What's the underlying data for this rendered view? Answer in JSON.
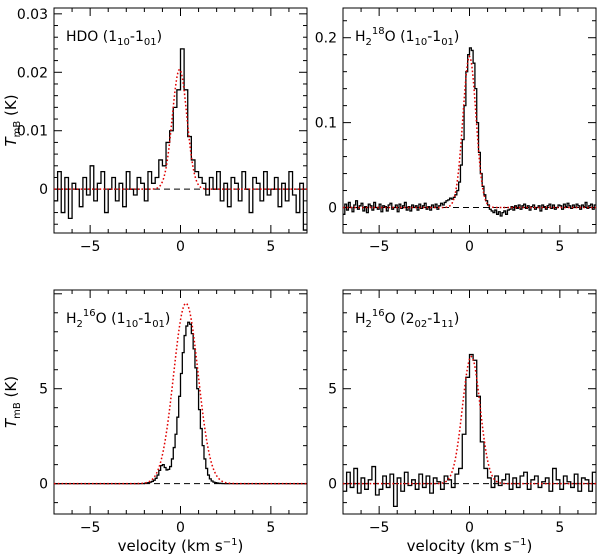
{
  "chart_data": [
    {
      "type": "line",
      "title": "HDO (1_10-1_01)",
      "title_parts": {
        "main": "HDO (1",
        "sub1": "10",
        "mid": "-1",
        "sub2": "01",
        "end": ")"
      },
      "xlabel": "",
      "ylabel": "T_mB (K)",
      "xlim": [
        -7,
        7
      ],
      "ylim": [
        -0.0075,
        0.031
      ],
      "xticks": [
        -5,
        0,
        5
      ],
      "yticks": [
        0,
        0.01,
        0.02,
        0.03
      ],
      "ytick_labels": [
        "0",
        "0.01",
        "0.02",
        "0.03"
      ],
      "legend": "none",
      "series": [
        {
          "name": "observed spectrum",
          "style": "histogram",
          "x": [
            -7.0,
            -6.8,
            -6.6,
            -6.4,
            -6.2,
            -6.0,
            -5.8,
            -5.6,
            -5.4,
            -5.2,
            -5.0,
            -4.8,
            -4.6,
            -4.4,
            -4.2,
            -4.0,
            -3.8,
            -3.6,
            -3.4,
            -3.2,
            -3.0,
            -2.8,
            -2.6,
            -2.4,
            -2.2,
            -2.0,
            -1.8,
            -1.6,
            -1.4,
            -1.2,
            -1.0,
            -0.8,
            -0.6,
            -0.4,
            -0.2,
            0.0,
            0.2,
            0.4,
            0.6,
            0.8,
            1.0,
            1.2,
            1.4,
            1.6,
            1.8,
            2.0,
            2.2,
            2.4,
            2.6,
            2.8,
            3.0,
            3.2,
            3.4,
            3.6,
            3.8,
            4.0,
            4.2,
            4.4,
            4.6,
            4.8,
            5.0,
            5.2,
            5.4,
            5.6,
            5.8,
            6.0,
            6.2,
            6.4,
            6.6,
            6.8
          ],
          "y": [
            -0.002,
            0.003,
            -0.004,
            0.002,
            -0.005,
            0.001,
            0.0,
            -0.003,
            0.002,
            -0.001,
            0.004,
            -0.002,
            0.001,
            0.003,
            -0.004,
            0.0,
            0.002,
            -0.002,
            0.001,
            -0.003,
            0.003,
            0.0,
            -0.001,
            0.002,
            0.001,
            -0.002,
            0.003,
            0.001,
            0.002,
            0.005,
            0.004,
            0.008,
            0.01,
            0.014,
            0.017,
            0.024,
            0.017,
            0.009,
            0.005,
            0.003,
            0.002,
            0.001,
            -0.001,
            0.002,
            0.0,
            0.003,
            -0.002,
            0.001,
            -0.003,
            0.002,
            0.001,
            -0.002,
            0.003,
            0.0,
            -0.004,
            0.002,
            0.001,
            -0.002,
            0.003,
            -0.001,
            0.0,
            0.002,
            -0.003,
            0.001,
            -0.002,
            0.003,
            -0.001,
            -0.004,
            0.001,
            -0.007
          ]
        },
        {
          "name": "model fit",
          "style": "dotted",
          "amp": 0.0205,
          "center": -0.05,
          "fwhm": 0.95
        }
      ]
    },
    {
      "type": "line",
      "title": "H2 18O (1_10-1_01)",
      "title_parts": {
        "main": "H",
        "sub1": "2",
        "sup": "18",
        "mid": "O (1",
        "sub2": "10",
        "mid2": "-1",
        "sub3": "01",
        "end": ")"
      },
      "xlabel": "",
      "ylabel": "",
      "xlim": [
        -7,
        7
      ],
      "ylim": [
        -0.03,
        0.235
      ],
      "xticks": [
        -5,
        0,
        5
      ],
      "yticks": [
        0,
        0.1,
        0.2
      ],
      "ytick_labels": [
        "0",
        "0.1",
        "0.2"
      ],
      "legend": "none",
      "series": [
        {
          "name": "observed spectrum",
          "style": "histogram",
          "x": [
            -7.0,
            -6.9,
            -6.8,
            -6.7,
            -6.6,
            -6.5,
            -6.4,
            -6.3,
            -6.2,
            -6.1,
            -6.0,
            -5.9,
            -5.8,
            -5.7,
            -5.6,
            -5.5,
            -5.4,
            -5.3,
            -5.2,
            -5.1,
            -5.0,
            -4.9,
            -4.8,
            -4.7,
            -4.6,
            -4.5,
            -4.4,
            -4.3,
            -4.2,
            -4.1,
            -4.0,
            -3.9,
            -3.8,
            -3.7,
            -3.6,
            -3.5,
            -3.4,
            -3.3,
            -3.2,
            -3.1,
            -3.0,
            -2.9,
            -2.8,
            -2.7,
            -2.6,
            -2.5,
            -2.4,
            -2.3,
            -2.2,
            -2.1,
            -2.0,
            -1.9,
            -1.8,
            -1.7,
            -1.6,
            -1.5,
            -1.4,
            -1.3,
            -1.2,
            -1.1,
            -1.0,
            -0.9,
            -0.8,
            -0.7,
            -0.6,
            -0.5,
            -0.4,
            -0.3,
            -0.2,
            -0.1,
            0.0,
            0.1,
            0.2,
            0.3,
            0.4,
            0.5,
            0.6,
            0.7,
            0.8,
            0.9,
            1.0,
            1.1,
            1.2,
            1.3,
            1.4,
            1.5,
            1.6,
            1.7,
            1.8,
            1.9,
            2.0,
            2.1,
            2.2,
            2.3,
            2.4,
            2.5,
            2.6,
            2.7,
            2.8,
            2.9,
            3.0,
            3.1,
            3.2,
            3.3,
            3.4,
            3.5,
            3.6,
            3.7,
            3.8,
            3.9,
            4.0,
            4.1,
            4.2,
            4.3,
            4.4,
            4.5,
            4.6,
            4.7,
            4.8,
            4.9,
            5.0,
            5.1,
            5.2,
            5.3,
            5.4,
            5.5,
            5.6,
            5.7,
            5.8,
            5.9,
            6.0,
            6.1,
            6.2,
            6.3,
            6.4,
            6.5,
            6.6,
            6.7,
            6.8,
            6.9
          ],
          "y": [
            -0.008,
            0.004,
            -0.003,
            0.006,
            0.0,
            -0.005,
            0.003,
            0.008,
            -0.002,
            0.002,
            0.005,
            -0.004,
            0.001,
            -0.006,
            0.004,
            0.002,
            -0.003,
            0.006,
            0.0,
            -0.002,
            0.004,
            -0.005,
            0.002,
            0.001,
            -0.004,
            0.003,
            0.005,
            -0.002,
            0.0,
            0.003,
            -0.005,
            0.004,
            -0.001,
            0.002,
            0.006,
            -0.003,
            0.001,
            -0.004,
            0.003,
            0.0,
            0.002,
            -0.003,
            0.004,
            -0.001,
            0.002,
            0.005,
            -0.002,
            0.001,
            -0.003,
            0.003,
            0.0,
            0.004,
            -0.002,
            0.002,
            0.005,
            0.003,
            0.006,
            0.008,
            0.009,
            0.011,
            0.01,
            0.012,
            0.015,
            0.02,
            0.03,
            0.05,
            0.08,
            0.12,
            0.16,
            0.18,
            0.188,
            0.185,
            0.17,
            0.14,
            0.1,
            0.065,
            0.04,
            0.025,
            0.015,
            0.008,
            0.003,
            -0.002,
            -0.004,
            -0.006,
            -0.003,
            -0.008,
            -0.005,
            -0.01,
            -0.006,
            -0.004,
            -0.008,
            -0.003,
            -0.002,
            0.001,
            -0.003,
            0.002,
            -0.001,
            0.003,
            -0.002,
            0.002,
            0.004,
            -0.001,
            0.002,
            -0.003,
            0.001,
            0.003,
            -0.002,
            0.0,
            0.002,
            -0.004,
            0.003,
            0.001,
            -0.002,
            0.002,
            0.004,
            -0.001,
            0.003,
            -0.002,
            0.0,
            0.003,
            0.002,
            -0.002,
            0.004,
            0.001,
            0.005,
            0.002,
            -0.001,
            0.003,
            0.0,
            0.004,
            0.002,
            -0.002,
            0.003,
            0.001,
            0.006,
            -0.001,
            0.002,
            0.004,
            -0.002,
            0.003
          ]
        },
        {
          "name": "model fit",
          "style": "dotted",
          "amp": 0.178,
          "center": 0.0,
          "fwhm": 0.85
        }
      ]
    },
    {
      "type": "line",
      "title": "H2 16O (1_10-1_01)",
      "title_parts": {
        "main": "H",
        "sub1": "2",
        "sup": "16",
        "mid": "O (1",
        "sub2": "10",
        "mid2": "-1",
        "sub3": "01",
        "end": ")"
      },
      "xlabel": "velocity (km s^-1)",
      "ylabel": "T_mB (K)",
      "xlim": [
        -7,
        7
      ],
      "ylim": [
        -1.6,
        10.2
      ],
      "xticks": [
        -5,
        0,
        5
      ],
      "yticks": [
        0,
        5
      ],
      "ytick_labels": [
        "0",
        "5"
      ],
      "legend": "none",
      "series": [
        {
          "name": "observed spectrum",
          "style": "histogram",
          "x": [
            -7.0,
            -6.9,
            -6.8,
            -6.7,
            -6.6,
            -6.5,
            -6.4,
            -6.3,
            -6.2,
            -6.1,
            -6.0,
            -5.9,
            -5.8,
            -5.7,
            -5.6,
            -5.5,
            -5.4,
            -5.3,
            -5.2,
            -5.1,
            -5.0,
            -4.9,
            -4.8,
            -4.7,
            -4.6,
            -4.5,
            -4.4,
            -4.3,
            -4.2,
            -4.1,
            -4.0,
            -3.9,
            -3.8,
            -3.7,
            -3.6,
            -3.5,
            -3.4,
            -3.3,
            -3.2,
            -3.1,
            -3.0,
            -2.9,
            -2.8,
            -2.7,
            -2.6,
            -2.5,
            -2.4,
            -2.3,
            -2.2,
            -2.1,
            -2.0,
            -1.9,
            -1.8,
            -1.7,
            -1.6,
            -1.5,
            -1.4,
            -1.3,
            -1.2,
            -1.1,
            -1.0,
            -0.9,
            -0.8,
            -0.7,
            -0.6,
            -0.5,
            -0.4,
            -0.3,
            -0.2,
            -0.1,
            0.0,
            0.1,
            0.2,
            0.3,
            0.4,
            0.5,
            0.6,
            0.7,
            0.8,
            0.9,
            1.0,
            1.1,
            1.2,
            1.3,
            1.4,
            1.5,
            1.6,
            1.7,
            1.8,
            1.9,
            2.0,
            2.1,
            2.2,
            2.3,
            2.4,
            2.5,
            2.6,
            2.7,
            2.8,
            2.9,
            3.0,
            3.1,
            3.2,
            3.3,
            3.4,
            3.5,
            3.6,
            3.7,
            3.8,
            3.9,
            4.0,
            4.1,
            4.2,
            4.3,
            4.4,
            4.5,
            4.6,
            4.7,
            4.8,
            4.9,
            5.0,
            5.1,
            5.2,
            5.3,
            5.4,
            5.5,
            5.6,
            5.7,
            5.8,
            5.9,
            6.0,
            6.1,
            6.2,
            6.3,
            6.4,
            6.5,
            6.6,
            6.7,
            6.8,
            6.9
          ],
          "y": [
            0.0,
            0.0,
            0.0,
            0.0,
            0.0,
            0.0,
            0.0,
            0.0,
            0.0,
            0.0,
            0.0,
            0.0,
            0.0,
            0.0,
            0.0,
            0.0,
            0.0,
            0.0,
            0.0,
            0.0,
            0.0,
            0.0,
            0.0,
            0.0,
            0.0,
            0.0,
            0.0,
            0.0,
            0.0,
            0.0,
            0.0,
            0.0,
            0.0,
            0.0,
            0.0,
            0.0,
            0.0,
            0.0,
            0.0,
            0.0,
            0.0,
            0.0,
            0.0,
            0.0,
            0.0,
            0.0,
            0.0,
            0.0,
            0.0,
            0.0,
            0.02,
            0.03,
            0.05,
            0.08,
            0.12,
            0.18,
            0.28,
            0.45,
            0.7,
            0.95,
            1.0,
            0.85,
            0.72,
            0.75,
            0.9,
            1.3,
            1.9,
            2.6,
            3.5,
            4.6,
            5.8,
            6.9,
            7.8,
            8.3,
            8.5,
            8.4,
            7.9,
            7.1,
            6.1,
            5.0,
            3.9,
            2.9,
            2.0,
            1.3,
            0.8,
            0.45,
            0.25,
            0.14,
            0.08,
            0.05,
            0.03,
            0.02,
            0.01,
            0.0,
            0.0,
            0.0,
            0.0,
            0.0,
            0.0,
            0.0,
            0.0,
            0.0,
            0.0,
            0.0,
            0.0,
            0.0,
            0.0,
            0.0,
            0.0,
            0.0,
            0.0,
            0.0,
            0.0,
            0.0,
            0.0,
            0.0,
            0.0,
            0.0,
            0.0,
            0.0,
            0.0,
            0.0,
            0.0,
            0.0,
            0.0,
            0.0,
            0.0,
            0.0,
            0.0,
            0.0,
            0.0,
            0.0,
            0.0,
            0.0,
            0.0,
            0.0,
            0.0,
            0.0,
            0.0,
            0.0
          ]
        },
        {
          "name": "model fit",
          "style": "dotted",
          "amp": 9.5,
          "center": 0.3,
          "fwhm": 1.6
        }
      ]
    },
    {
      "type": "line",
      "title": "H2 16O (2_02-1_11)",
      "title_parts": {
        "main": "H",
        "sub1": "2",
        "sup": "16",
        "mid": "O (2",
        "sub2": "02",
        "mid2": "-1",
        "sub3": "11",
        "end": ")"
      },
      "xlabel": "velocity (km s^-1)",
      "ylabel": "",
      "xlim": [
        -7,
        7
      ],
      "ylim": [
        -1.6,
        10.2
      ],
      "xticks": [
        -5,
        0,
        5
      ],
      "yticks": [
        0,
        5
      ],
      "ytick_labels": [
        "0",
        "5"
      ],
      "legend": "none",
      "series": [
        {
          "name": "observed spectrum",
          "style": "histogram",
          "x": [
            -7.0,
            -6.8,
            -6.6,
            -6.4,
            -6.2,
            -6.0,
            -5.8,
            -5.6,
            -5.4,
            -5.2,
            -5.0,
            -4.8,
            -4.6,
            -4.4,
            -4.2,
            -4.0,
            -3.8,
            -3.6,
            -3.4,
            -3.2,
            -3.0,
            -2.8,
            -2.6,
            -2.4,
            -2.2,
            -2.0,
            -1.8,
            -1.6,
            -1.4,
            -1.2,
            -1.0,
            -0.8,
            -0.6,
            -0.4,
            -0.2,
            0.0,
            0.2,
            0.4,
            0.6,
            0.8,
            1.0,
            1.2,
            1.4,
            1.6,
            1.8,
            2.0,
            2.2,
            2.4,
            2.6,
            2.8,
            3.0,
            3.2,
            3.4,
            3.6,
            3.8,
            4.0,
            4.2,
            4.4,
            4.6,
            4.8,
            5.0,
            5.2,
            5.4,
            5.6,
            5.8,
            6.0,
            6.2,
            6.4,
            6.6,
            6.8
          ],
          "y": [
            -0.4,
            0.6,
            -0.2,
            0.8,
            -0.5,
            0.3,
            -0.3,
            0.2,
            0.9,
            -0.6,
            -0.3,
            0.4,
            -0.2,
            0.5,
            -1.2,
            0.3,
            -0.4,
            0.6,
            -0.1,
            0.2,
            -0.3,
            0.5,
            -0.2,
            0.4,
            -0.5,
            0.3,
            0.1,
            -0.3,
            0.4,
            0.2,
            -0.2,
            0.5,
            0.8,
            2.6,
            5.6,
            6.8,
            6.5,
            4.6,
            2.2,
            0.8,
            0.3,
            -0.2,
            0.4,
            -0.1,
            0.2,
            0.5,
            -0.3,
            0.3,
            -0.2,
            0.4,
            0.6,
            -0.3,
            0.2,
            0.4,
            -0.2,
            0.1,
            0.3,
            -0.4,
            0.8,
            0.2,
            -0.3,
            0.4,
            0.1,
            -0.2,
            0.5,
            -0.4,
            0.3,
            0.2,
            -0.4,
            0.6
          ]
        },
        {
          "name": "model fit",
          "style": "dotted",
          "amp": 6.7,
          "center": 0.1,
          "fwhm": 1.15
        }
      ]
    }
  ]
}
